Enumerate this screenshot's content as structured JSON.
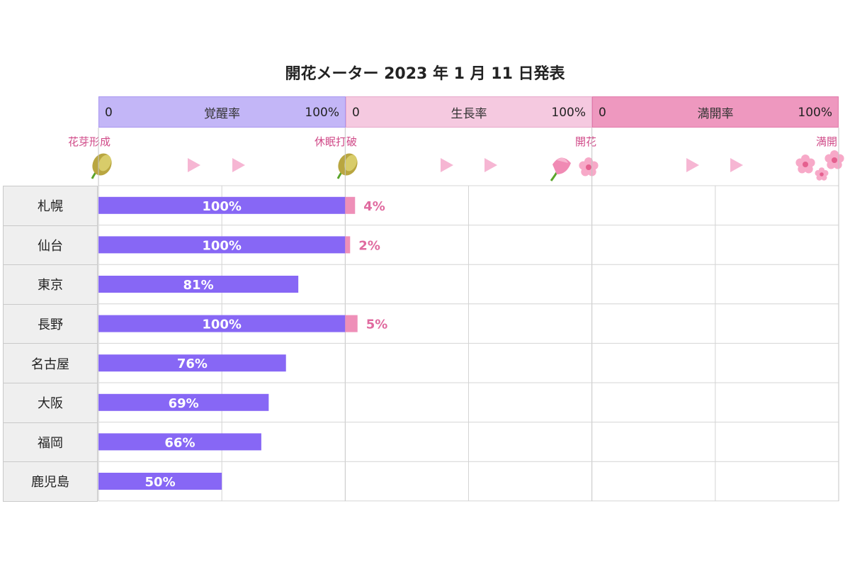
{
  "title": "開花メーター 2023 年 1 月 11 日発表",
  "stages": [
    {
      "name": "覚醒率",
      "min": "0",
      "max": "100%",
      "color": "#c3b6f7",
      "border": "#a996f0"
    },
    {
      "name": "生長率",
      "min": "0",
      "max": "100%",
      "color": "#f5c9e0",
      "border": "#e7a8ca"
    },
    {
      "name": "満開率",
      "min": "0",
      "max": "100%",
      "color": "#ee98bf",
      "border": "#e27aaa"
    }
  ],
  "milestones": [
    "花芽形成",
    "休眠打破",
    "開花",
    "満開"
  ],
  "icons": {
    "bud": "bud-icon",
    "arrow": "arrow-icon",
    "flower": "sakura-flower-icon",
    "flower_cluster": "sakura-cluster-icon"
  },
  "colors": {
    "awakening_bar": "#8767f5",
    "growth_bar": "#ee8fb8",
    "growth_label": "#e06a9f",
    "arrow": "#f6b6d3",
    "grid": "#d4d4d4"
  },
  "chart_data": {
    "type": "bar",
    "title": "開花メーター 2023 年 1 月 11 日発表",
    "categories": [
      "札幌",
      "仙台",
      "東京",
      "長野",
      "名古屋",
      "大阪",
      "福岡",
      "鹿児島"
    ],
    "series": [
      {
        "name": "覚醒率",
        "values": [
          100,
          100,
          81,
          100,
          76,
          69,
          66,
          50
        ],
        "labels": [
          "100%",
          "100%",
          "81%",
          "100%",
          "76%",
          "69%",
          "66%",
          "50%"
        ]
      },
      {
        "name": "生長率",
        "values": [
          4,
          2,
          0,
          5,
          0,
          0,
          0,
          0
        ],
        "labels": [
          "4%",
          "2%",
          "",
          "5%",
          "",
          "",
          "",
          ""
        ]
      },
      {
        "name": "満開率",
        "values": [
          0,
          0,
          0,
          0,
          0,
          0,
          0,
          0
        ],
        "labels": [
          "",
          "",
          "",
          "",
          "",
          "",
          "",
          ""
        ]
      }
    ],
    "xlim": [
      0,
      300
    ],
    "grid": true,
    "stacked_stages": true
  }
}
